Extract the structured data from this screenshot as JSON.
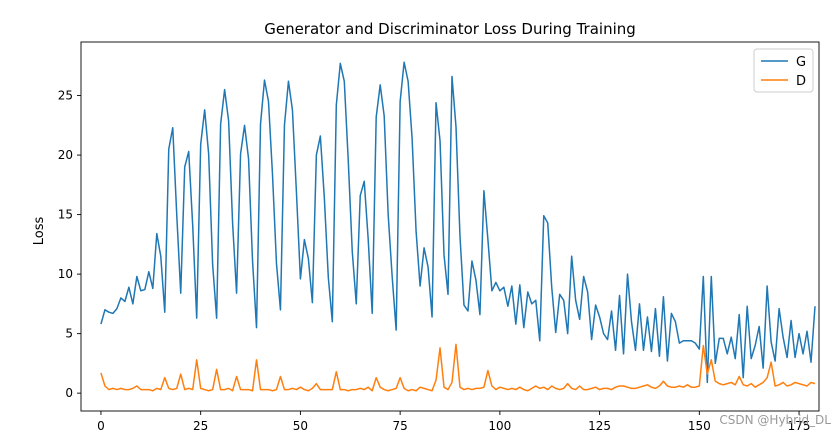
{
  "chart_data": {
    "type": "line",
    "title": "Generator and Discriminator Loss During Training",
    "xlabel": "",
    "ylabel": "Loss",
    "xlim": [
      -5,
      180
    ],
    "ylim": [
      -1.5,
      29.5
    ],
    "xticks": [
      0,
      25,
      50,
      75,
      100,
      125,
      150,
      175
    ],
    "yticks": [
      0,
      5,
      10,
      15,
      20,
      25
    ],
    "grid": false,
    "legend": "top-right",
    "series": [
      {
        "name": "G",
        "color": "#1f77b4",
        "values": [
          5.8,
          7.0,
          6.8,
          6.7,
          7.1,
          8.0,
          7.7,
          8.9,
          7.5,
          9.8,
          8.6,
          8.7,
          10.2,
          8.8,
          13.4,
          11.5,
          6.8,
          20.5,
          22.3,
          15.0,
          8.4,
          19.0,
          20.3,
          14.1,
          6.3,
          20.9,
          23.8,
          20.1,
          10.8,
          6.3,
          22.6,
          25.5,
          22.9,
          14.3,
          8.4,
          20.1,
          22.5,
          19.7,
          11.1,
          5.5,
          22.6,
          26.3,
          24.5,
          18.4,
          10.9,
          7.0,
          22.5,
          26.2,
          23.8,
          16.9,
          9.6,
          12.9,
          11.3,
          7.6,
          20.0,
          21.6,
          16.4,
          9.7,
          6.0,
          24.2,
          27.7,
          26.2,
          19.5,
          11.9,
          7.5,
          16.6,
          17.8,
          12.9,
          6.7,
          23.2,
          25.9,
          23.3,
          15.0,
          9.8,
          5.3,
          24.5,
          27.8,
          26.2,
          21.4,
          13.6,
          9.0,
          12.2,
          10.6,
          6.4,
          24.4,
          21.2,
          11.6,
          8.3,
          26.6,
          22.4,
          13.2,
          7.4,
          6.9,
          11.1,
          9.5,
          6.6,
          17.0,
          12.9,
          8.6,
          9.3,
          8.6,
          8.9,
          7.3,
          9.0,
          5.8,
          9.1,
          5.5,
          8.5,
          7.5,
          7.8,
          4.4,
          14.9,
          14.3,
          8.9,
          5.1,
          8.3,
          7.8,
          5.0,
          11.5,
          7.8,
          6.2,
          9.8,
          8.5,
          4.5,
          7.4,
          6.4,
          5.0,
          4.5,
          6.9,
          3.6,
          8.2,
          3.3,
          10.0,
          6.0,
          3.6,
          7.5,
          3.6,
          6.4,
          3.5,
          7.1,
          3.1,
          8.1,
          2.7,
          6.7,
          6.0,
          4.2,
          4.4,
          4.4,
          4.4,
          4.2,
          3.7,
          9.8,
          0.9,
          9.8,
          2.5,
          4.6,
          4.6,
          3.3,
          4.7,
          2.9,
          6.6,
          1.3,
          7.3,
          2.9,
          4.0,
          5.6,
          2.1,
          9.0,
          4.3,
          2.7,
          7.1,
          4.7,
          3.0,
          6.1,
          3.0,
          5.0,
          3.3,
          5.2,
          2.6,
          7.3
        ]
      },
      {
        "name": "D",
        "color": "#ff7f0e",
        "values": [
          1.7,
          0.6,
          0.3,
          0.4,
          0.3,
          0.4,
          0.3,
          0.3,
          0.4,
          0.6,
          0.3,
          0.3,
          0.3,
          0.2,
          0.4,
          0.3,
          1.3,
          0.4,
          0.3,
          0.4,
          1.6,
          0.3,
          0.4,
          0.3,
          2.8,
          0.4,
          0.3,
          0.2,
          0.3,
          2.0,
          0.3,
          0.3,
          0.4,
          0.2,
          1.4,
          0.3,
          0.3,
          0.3,
          0.2,
          2.8,
          0.3,
          0.3,
          0.3,
          0.2,
          0.3,
          1.4,
          0.3,
          0.3,
          0.4,
          0.3,
          0.5,
          0.3,
          0.2,
          0.4,
          0.8,
          0.3,
          0.3,
          0.3,
          0.3,
          1.8,
          0.3,
          0.3,
          0.2,
          0.3,
          0.3,
          0.4,
          0.3,
          0.5,
          0.2,
          1.3,
          0.5,
          0.3,
          0.2,
          0.3,
          0.4,
          1.3,
          0.4,
          0.2,
          0.3,
          0.2,
          0.5,
          0.4,
          0.3,
          0.2,
          1.1,
          3.8,
          0.5,
          0.3,
          0.9,
          4.1,
          0.5,
          0.3,
          0.4,
          0.3,
          0.4,
          0.4,
          0.5,
          1.9,
          0.6,
          0.3,
          0.5,
          0.4,
          0.3,
          0.4,
          0.3,
          0.5,
          0.3,
          0.2,
          0.4,
          0.6,
          0.4,
          0.5,
          0.3,
          0.6,
          0.4,
          0.3,
          0.4,
          0.8,
          0.4,
          0.3,
          0.6,
          0.3,
          0.3,
          0.4,
          0.5,
          0.3,
          0.4,
          0.4,
          0.3,
          0.5,
          0.6,
          0.6,
          0.5,
          0.4,
          0.4,
          0.5,
          0.6,
          0.7,
          0.5,
          0.4,
          0.6,
          1.0,
          0.6,
          0.5,
          0.5,
          0.6,
          0.5,
          0.7,
          0.5,
          0.5,
          0.6,
          4.0,
          1.6,
          2.8,
          1.0,
          0.8,
          0.7,
          0.8,
          0.9,
          0.7,
          1.4,
          0.7,
          0.6,
          0.8,
          0.5,
          0.7,
          0.9,
          1.3,
          2.6,
          0.6,
          0.7,
          0.9,
          0.6,
          0.7,
          0.9,
          0.8,
          0.7,
          0.6,
          0.9,
          0.8
        ]
      }
    ]
  },
  "watermark": "CSDN @Hybrid_DL"
}
